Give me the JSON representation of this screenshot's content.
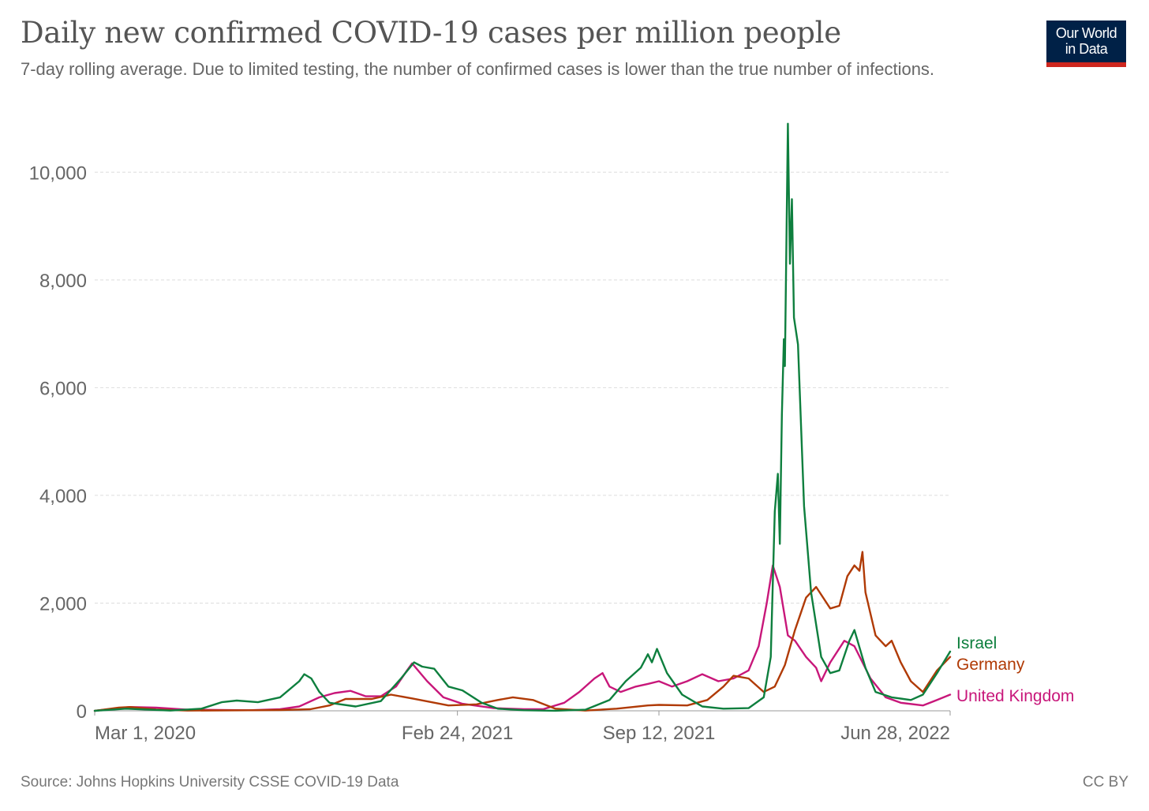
{
  "header": {
    "title": "Daily new confirmed COVID-19 cases per million people",
    "subtitle": "7-day rolling average. Due to limited testing, the number of confirmed cases is lower than the true number of infections.",
    "logo_line1": "Our World",
    "logo_line2": "in Data"
  },
  "footer": {
    "source": "Source: Johns Hopkins University CSSE COVID-19 Data",
    "license": "CC BY"
  },
  "colors": {
    "Israel": "#0e7f3e",
    "Germany": "#b03a05",
    "United Kingdom": "#c8177a",
    "grid": "#dddddd",
    "axis_text": "#666666"
  },
  "chart_data": {
    "type": "line",
    "title": "Daily new confirmed COVID-19 cases per million people",
    "xlabel": "",
    "ylabel": "",
    "x_ticks": [
      "2020-03-01",
      "2021-02-24",
      "2021-09-12",
      "2022-06-28"
    ],
    "x_tick_labels": [
      "Mar 1, 2020",
      "Feb 24, 2021",
      "Sep 12, 2021",
      "Jun 28, 2022"
    ],
    "xlim": [
      "2020-03-01",
      "2022-06-28"
    ],
    "ylim": [
      0,
      11000
    ],
    "y_ticks": [
      0,
      2000,
      4000,
      6000,
      8000,
      10000
    ],
    "y_tick_labels": [
      "0",
      "2,000",
      "4,000",
      "6,000",
      "8,000",
      "10,000"
    ],
    "grid": "horizontal dashed",
    "legend": "labels at right end of lines",
    "series": [
      {
        "name": "Israel",
        "points": [
          [
            "2020-03-01",
            0
          ],
          [
            "2020-04-01",
            40
          ],
          [
            "2020-05-15",
            5
          ],
          [
            "2020-06-15",
            40
          ],
          [
            "2020-07-05",
            160
          ],
          [
            "2020-07-20",
            190
          ],
          [
            "2020-08-10",
            160
          ],
          [
            "2020-09-01",
            250
          ],
          [
            "2020-09-20",
            550
          ],
          [
            "2020-09-25",
            680
          ],
          [
            "2020-10-02",
            600
          ],
          [
            "2020-10-10",
            350
          ],
          [
            "2020-10-20",
            150
          ],
          [
            "2020-11-15",
            80
          ],
          [
            "2020-12-10",
            180
          ],
          [
            "2020-12-30",
            600
          ],
          [
            "2021-01-12",
            900
          ],
          [
            "2021-01-20",
            820
          ],
          [
            "2021-02-01",
            780
          ],
          [
            "2021-02-15",
            450
          ],
          [
            "2021-03-01",
            380
          ],
          [
            "2021-03-20",
            150
          ],
          [
            "2021-04-05",
            40
          ],
          [
            "2021-05-01",
            10
          ],
          [
            "2021-06-01",
            2
          ],
          [
            "2021-07-01",
            20
          ],
          [
            "2021-07-25",
            200
          ],
          [
            "2021-08-10",
            550
          ],
          [
            "2021-08-25",
            800
          ],
          [
            "2021-09-01",
            1050
          ],
          [
            "2021-09-05",
            900
          ],
          [
            "2021-09-10",
            1150
          ],
          [
            "2021-09-20",
            700
          ],
          [
            "2021-10-05",
            300
          ],
          [
            "2021-10-25",
            80
          ],
          [
            "2021-11-15",
            40
          ],
          [
            "2021-12-10",
            50
          ],
          [
            "2021-12-25",
            250
          ],
          [
            "2022-01-01",
            1000
          ],
          [
            "2022-01-05",
            3700
          ],
          [
            "2022-01-08",
            4400
          ],
          [
            "2022-01-10",
            3100
          ],
          [
            "2022-01-12",
            5500
          ],
          [
            "2022-01-14",
            6900
          ],
          [
            "2022-01-15",
            6400
          ],
          [
            "2022-01-18",
            10900
          ],
          [
            "2022-01-20",
            8300
          ],
          [
            "2022-01-22",
            9500
          ],
          [
            "2022-01-24",
            7300
          ],
          [
            "2022-01-28",
            6800
          ],
          [
            "2022-02-03",
            3800
          ],
          [
            "2022-02-10",
            2200
          ],
          [
            "2022-02-20",
            1000
          ],
          [
            "2022-03-01",
            700
          ],
          [
            "2022-03-10",
            750
          ],
          [
            "2022-03-20",
            1300
          ],
          [
            "2022-03-25",
            1500
          ],
          [
            "2022-04-05",
            800
          ],
          [
            "2022-04-15",
            350
          ],
          [
            "2022-05-01",
            250
          ],
          [
            "2022-05-20",
            200
          ],
          [
            "2022-06-01",
            300
          ],
          [
            "2022-06-15",
            700
          ],
          [
            "2022-06-28",
            1100
          ]
        ]
      },
      {
        "name": "Germany",
        "points": [
          [
            "2020-03-01",
            0
          ],
          [
            "2020-03-25",
            60
          ],
          [
            "2020-04-05",
            70
          ],
          [
            "2020-05-01",
            25
          ],
          [
            "2020-06-01",
            5
          ],
          [
            "2020-08-01",
            10
          ],
          [
            "2020-09-01",
            15
          ],
          [
            "2020-10-01",
            30
          ],
          [
            "2020-10-20",
            100
          ],
          [
            "2020-11-05",
            220
          ],
          [
            "2020-12-01",
            220
          ],
          [
            "2020-12-20",
            300
          ],
          [
            "2021-01-10",
            230
          ],
          [
            "2021-02-15",
            100
          ],
          [
            "2021-03-15",
            120
          ],
          [
            "2021-04-05",
            200
          ],
          [
            "2021-04-20",
            250
          ],
          [
            "2021-05-10",
            200
          ],
          [
            "2021-06-01",
            40
          ],
          [
            "2021-07-01",
            5
          ],
          [
            "2021-08-01",
            40
          ],
          [
            "2021-09-01",
            100
          ],
          [
            "2021-09-12",
            110
          ],
          [
            "2021-10-10",
            100
          ],
          [
            "2021-10-30",
            200
          ],
          [
            "2021-11-15",
            450
          ],
          [
            "2021-11-25",
            650
          ],
          [
            "2021-12-10",
            600
          ],
          [
            "2021-12-25",
            350
          ],
          [
            "2022-01-05",
            450
          ],
          [
            "2022-01-15",
            850
          ],
          [
            "2022-01-25",
            1500
          ],
          [
            "2022-02-05",
            2100
          ],
          [
            "2022-02-15",
            2300
          ],
          [
            "2022-03-01",
            1900
          ],
          [
            "2022-03-10",
            1950
          ],
          [
            "2022-03-18",
            2500
          ],
          [
            "2022-03-25",
            2700
          ],
          [
            "2022-03-30",
            2600
          ],
          [
            "2022-04-02",
            2950
          ],
          [
            "2022-04-05",
            2200
          ],
          [
            "2022-04-10",
            1800
          ],
          [
            "2022-04-15",
            1400
          ],
          [
            "2022-04-25",
            1200
          ],
          [
            "2022-05-01",
            1300
          ],
          [
            "2022-05-10",
            900
          ],
          [
            "2022-05-20",
            550
          ],
          [
            "2022-06-01",
            350
          ],
          [
            "2022-06-15",
            750
          ],
          [
            "2022-06-28",
            1000
          ]
        ]
      },
      {
        "name": "United Kingdom",
        "points": [
          [
            "2020-03-01",
            0
          ],
          [
            "2020-04-05",
            70
          ],
          [
            "2020-05-01",
            60
          ],
          [
            "2020-06-01",
            20
          ],
          [
            "2020-08-01",
            10
          ],
          [
            "2020-09-01",
            30
          ],
          [
            "2020-09-20",
            80
          ],
          [
            "2020-10-10",
            250
          ],
          [
            "2020-10-25",
            330
          ],
          [
            "2020-11-10",
            370
          ],
          [
            "2020-11-25",
            270
          ],
          [
            "2020-12-10",
            270
          ],
          [
            "2020-12-25",
            450
          ],
          [
            "2021-01-05",
            750
          ],
          [
            "2021-01-10",
            880
          ],
          [
            "2021-01-25",
            550
          ],
          [
            "2021-02-10",
            250
          ],
          [
            "2021-03-01",
            130
          ],
          [
            "2021-04-01",
            50
          ],
          [
            "2021-05-01",
            30
          ],
          [
            "2021-05-20",
            30
          ],
          [
            "2021-06-10",
            150
          ],
          [
            "2021-06-25",
            350
          ],
          [
            "2021-07-10",
            600
          ],
          [
            "2021-07-18",
            700
          ],
          [
            "2021-07-25",
            450
          ],
          [
            "2021-08-05",
            350
          ],
          [
            "2021-08-20",
            450
          ],
          [
            "2021-09-01",
            500
          ],
          [
            "2021-09-12",
            550
          ],
          [
            "2021-09-25",
            450
          ],
          [
            "2021-10-10",
            550
          ],
          [
            "2021-10-25",
            680
          ],
          [
            "2021-11-10",
            550
          ],
          [
            "2021-11-25",
            600
          ],
          [
            "2021-12-10",
            750
          ],
          [
            "2021-12-20",
            1200
          ],
          [
            "2021-12-28",
            2000
          ],
          [
            "2022-01-03",
            2700
          ],
          [
            "2022-01-10",
            2300
          ],
          [
            "2022-01-18",
            1400
          ],
          [
            "2022-01-25",
            1300
          ],
          [
            "2022-02-05",
            1000
          ],
          [
            "2022-02-15",
            800
          ],
          [
            "2022-02-20",
            550
          ],
          [
            "2022-03-01",
            900
          ],
          [
            "2022-03-15",
            1300
          ],
          [
            "2022-03-25",
            1200
          ],
          [
            "2022-04-10",
            600
          ],
          [
            "2022-04-25",
            250
          ],
          [
            "2022-05-10",
            150
          ],
          [
            "2022-06-01",
            100
          ],
          [
            "2022-06-15",
            200
          ],
          [
            "2022-06-28",
            300
          ]
        ]
      }
    ]
  }
}
